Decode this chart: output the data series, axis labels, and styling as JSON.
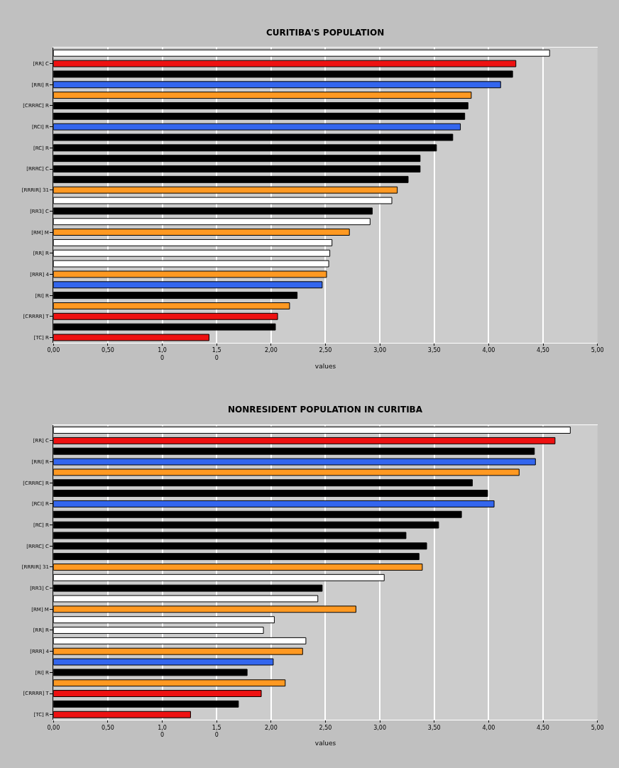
{
  "chart_data": [
    {
      "type": "bar",
      "orientation": "horizontal",
      "title": "CURITIBA'S POPULATION",
      "xlabel": "values",
      "categories": [
        null,
        "[RR] C",
        null,
        "[RRI] R",
        null,
        "[CRRRC] R",
        null,
        "[RCI] R",
        null,
        "[RC] R",
        null,
        "[RRRC] C",
        null,
        "[RRRIR] 31",
        null,
        "[RR3] C",
        null,
        "[RM] M",
        null,
        "[RR] R",
        null,
        "[RRR] 4",
        null,
        "[RI] R",
        null,
        "[CRRRR] T",
        null,
        "[TC] R"
      ],
      "values": [
        4.56,
        4.25,
        4.22,
        4.11,
        3.84,
        3.81,
        3.78,
        3.74,
        3.67,
        3.52,
        3.37,
        3.37,
        3.26,
        3.16,
        3.11,
        2.93,
        2.91,
        2.72,
        2.56,
        2.54,
        2.53,
        2.51,
        2.47,
        2.24,
        2.17,
        2.06,
        2.04,
        1.43
      ],
      "colors": [
        "#ffffff",
        "#ee1111",
        "#000000",
        "#3366ee",
        "#ff9922",
        "#000000",
        "#000000",
        "#3366ee",
        "#000000",
        "#000000",
        "#000000",
        "#000000",
        "#000000",
        "#ff9922",
        "#ffffff",
        "#000000",
        "#ffffff",
        "#ff9922",
        "#ffffff",
        "#ffffff",
        "#ffffff",
        "#ff9922",
        "#3366ee",
        "#000000",
        "#ff9922",
        "#ee1111",
        "#000000",
        "#ee1111"
      ],
      "xlim": [
        0,
        5
      ],
      "xticks": [
        {
          "value": 0,
          "label": "0,00"
        },
        {
          "value": 0.5,
          "label": "0,50"
        },
        {
          "value": 1,
          "label": "1,0\n0"
        },
        {
          "value": 1.5,
          "label": "1,5\n0"
        },
        {
          "value": 2,
          "label": "2,00"
        },
        {
          "value": 2.5,
          "label": "2,50"
        },
        {
          "value": 3,
          "label": "3,00"
        },
        {
          "value": 3.5,
          "label": "3,50"
        },
        {
          "value": 4,
          "label": "4,00"
        },
        {
          "value": 4.5,
          "label": "4,50"
        },
        {
          "value": 5,
          "label": "5,00"
        }
      ],
      "grid": "x"
    },
    {
      "type": "bar",
      "orientation": "horizontal",
      "title": "NONRESIDENT POPULATION IN CURITIBA",
      "xlabel": "values",
      "categories": [
        null,
        "[RR] C",
        null,
        "[RRI] R",
        null,
        "[CRRRC] R",
        null,
        "[RCI] R",
        null,
        "[RC] R",
        null,
        "[RRRC] C",
        null,
        "[RRRIR] 31",
        null,
        "[RR3] C",
        null,
        "[RM] M",
        null,
        "[RR] R",
        null,
        "[RRR] 4",
        null,
        "[RI] R",
        null,
        "[CRRRR] T",
        null,
        "[TC] R"
      ],
      "values": [
        4.75,
        4.61,
        4.42,
        4.43,
        4.28,
        3.85,
        3.99,
        4.05,
        3.75,
        3.54,
        3.24,
        3.43,
        3.36,
        3.39,
        3.04,
        2.47,
        2.43,
        2.78,
        2.03,
        1.93,
        2.32,
        2.29,
        2.02,
        1.78,
        2.13,
        1.91,
        1.7,
        1.26
      ],
      "colors": [
        "#ffffff",
        "#ee1111",
        "#000000",
        "#3366ee",
        "#ff9922",
        "#000000",
        "#000000",
        "#3366ee",
        "#000000",
        "#000000",
        "#000000",
        "#000000",
        "#000000",
        "#ff9922",
        "#ffffff",
        "#000000",
        "#ffffff",
        "#ff9922",
        "#ffffff",
        "#ffffff",
        "#ffffff",
        "#ff9922",
        "#3366ee",
        "#000000",
        "#ff9922",
        "#ee1111",
        "#000000",
        "#ee1111"
      ],
      "xlim": [
        0,
        5
      ],
      "xticks": [
        {
          "value": 0,
          "label": "0,00"
        },
        {
          "value": 0.5,
          "label": "0,50"
        },
        {
          "value": 1,
          "label": "1,0\n0"
        },
        {
          "value": 1.5,
          "label": "1,5\n0"
        },
        {
          "value": 2,
          "label": "2,00"
        },
        {
          "value": 2.5,
          "label": "2,50"
        },
        {
          "value": 3,
          "label": "3,00"
        },
        {
          "value": 3.5,
          "label": "3,50"
        },
        {
          "value": 4,
          "label": "4,00"
        },
        {
          "value": 4.5,
          "label": "4,50"
        },
        {
          "value": 5,
          "label": "5,00"
        }
      ],
      "grid": "x"
    }
  ]
}
